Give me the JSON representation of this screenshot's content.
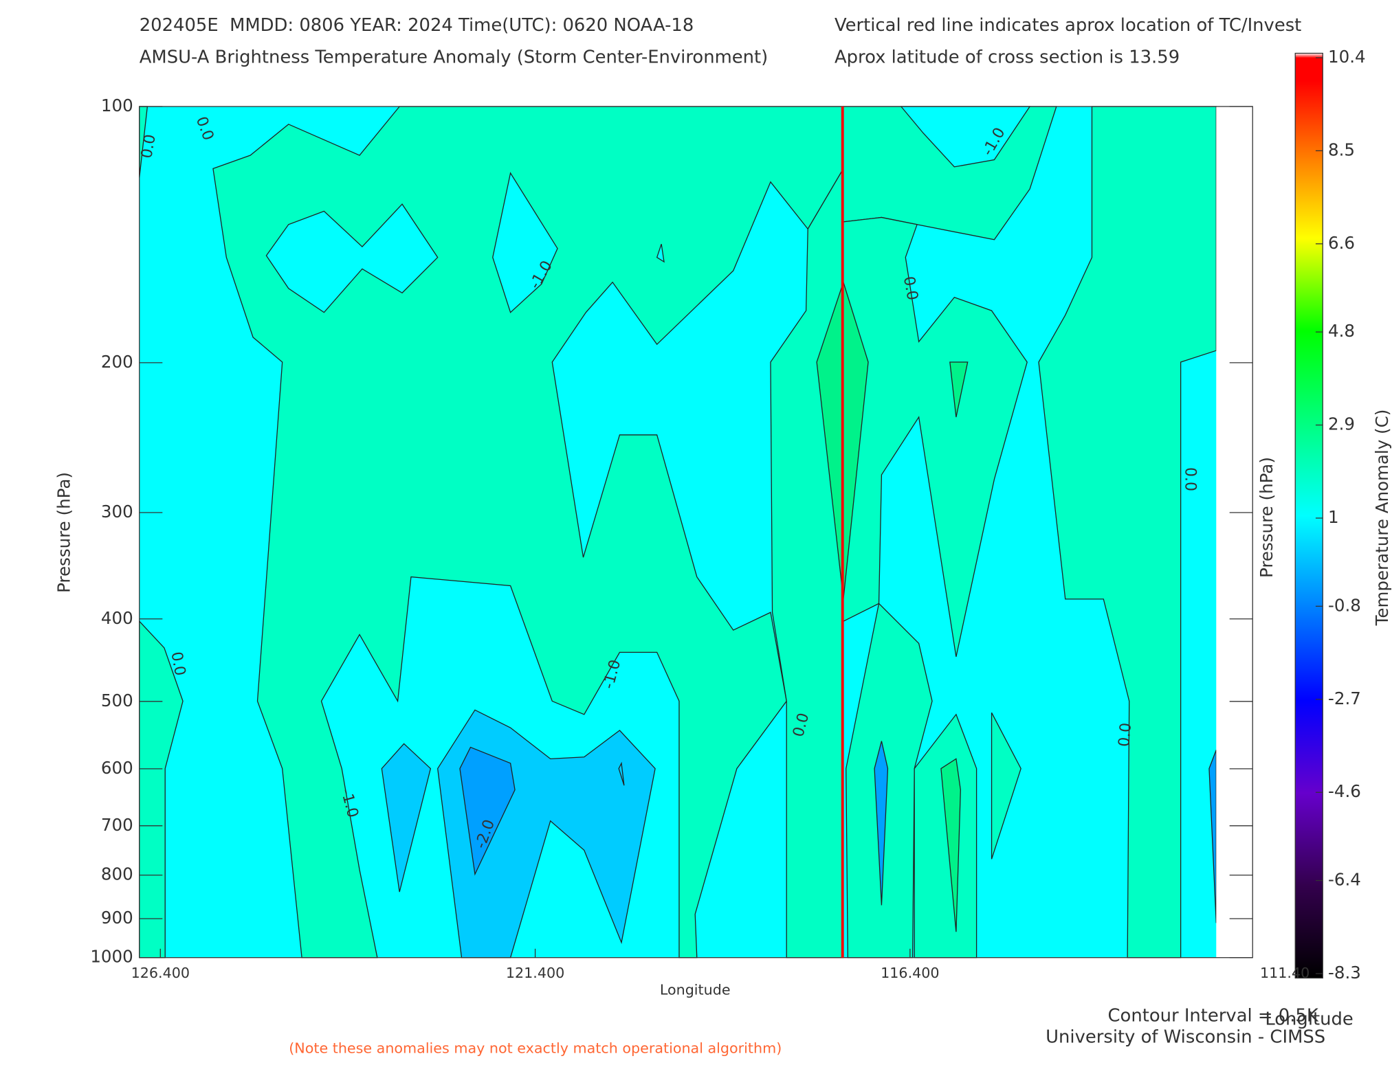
{
  "header": {
    "line1_left": "202405E  MMDD: 0806 YEAR: 2024 Time(UTC): 0620 NOAA-18",
    "line1_right": "Vertical red line indicates aprox location of TC/Invest",
    "line2_left": "AMSU-A Brightness Temperature Anomaly (Storm Center-Environment)",
    "line2_right": "Aprox latitude of cross section is 13.59"
  },
  "chart_data": {
    "type": "contour",
    "x_label": "Longitude",
    "y_label": "Pressure (hPa)",
    "y2_label": "Pressure (hPa)",
    "xlim": [
      126.68,
      111.83
    ],
    "xticks": [
      {
        "value": 126.4,
        "label": "126.400"
      },
      {
        "value": 121.4,
        "label": "121.400"
      },
      {
        "value": 116.4,
        "label": "116.400"
      },
      {
        "value": 111.4,
        "label": "111.40"
      }
    ],
    "ylim": [
      1000,
      100
    ],
    "yscale": "log",
    "yticks": [
      100,
      200,
      300,
      400,
      500,
      600,
      700,
      800,
      900,
      1000
    ],
    "tc_longitude": 117.3,
    "tc_color": "#ff0000",
    "contour_labels": [
      "0.0",
      "0.0",
      "-1.0",
      "0.0",
      "-1.0",
      "0.0",
      "0.0",
      "-1.0",
      "0.0",
      "-1.0",
      "-2.0",
      "0.0"
    ],
    "colorbar": {
      "label": "Temperature Anomaly (C)",
      "lim": [
        -8.3,
        10.4
      ],
      "ticks": [
        10.4,
        8.5,
        6.6,
        4.8,
        2.9,
        1.0,
        -0.8,
        -2.7,
        -4.6,
        -6.4,
        -8.3
      ]
    }
  },
  "footer": {
    "contour_interval": "Contour Interval = 0.5K",
    "corner_label": "Longitude",
    "credit": "University of Wisconsin - CIMSS",
    "note": "(Note these anomalies may not exactly match operational algorithm)"
  }
}
